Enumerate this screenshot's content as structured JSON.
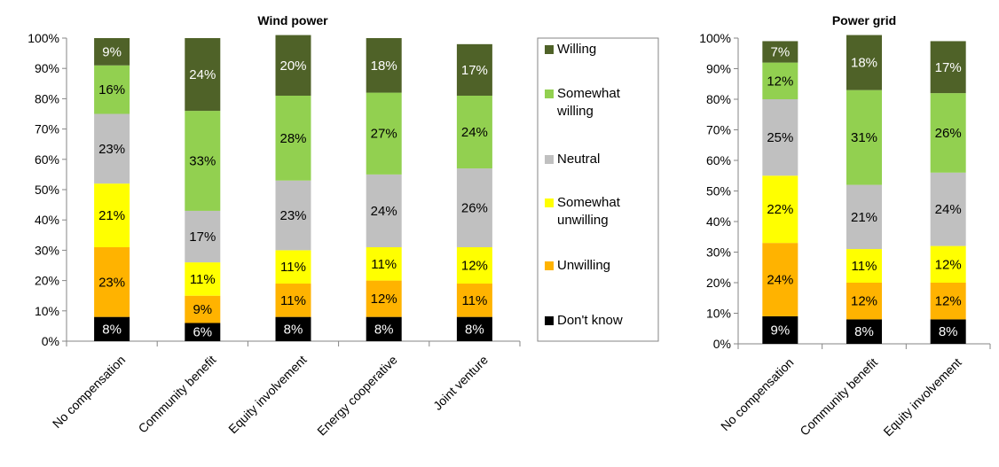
{
  "chart_data": [
    {
      "type": "bar",
      "stacked": true,
      "percent_stacked": true,
      "title": "Wind power",
      "categories": [
        "No compensation",
        "Community benefit",
        "Equity involvement",
        "Energy cooperative",
        "Joint venture"
      ],
      "ylim": [
        0,
        100
      ],
      "yticks": [
        "0%",
        "10%",
        "20%",
        "30%",
        "40%",
        "50%",
        "60%",
        "70%",
        "80%",
        "90%",
        "100%"
      ],
      "series": [
        {
          "name": "Don't know",
          "color": "#000000",
          "values": [
            8,
            6,
            8,
            8,
            8
          ],
          "labels": [
            "8%",
            "6%",
            "8%",
            "8%",
            "8%"
          ]
        },
        {
          "name": "Unwilling",
          "color": "#ffb300",
          "values": [
            23,
            9,
            11,
            12,
            11
          ],
          "labels": [
            "23%",
            "9%",
            "11%",
            "12%",
            "11%"
          ]
        },
        {
          "name": "Somewhat unwilling",
          "color": "#ffff00",
          "values": [
            21,
            11,
            11,
            11,
            12
          ],
          "labels": [
            "21%",
            "11%",
            "11%",
            "11%",
            "12%"
          ]
        },
        {
          "name": "Neutral",
          "color": "#c0c0c0",
          "values": [
            23,
            17,
            23,
            24,
            26
          ],
          "labels": [
            "23%",
            "17%",
            "23%",
            "24%",
            "26%"
          ]
        },
        {
          "name": "Somewhat willing",
          "color": "#92d050",
          "values": [
            16,
            33,
            28,
            27,
            24
          ],
          "labels": [
            "16%",
            "33%",
            "28%",
            "27%",
            "24%"
          ]
        },
        {
          "name": "Willing",
          "color": "#4f6228",
          "values": [
            9,
            24,
            20,
            18,
            17
          ],
          "labels": [
            "9%",
            "24%",
            "20%",
            "18%",
            "17%"
          ]
        }
      ]
    },
    {
      "type": "bar",
      "stacked": true,
      "percent_stacked": true,
      "title": "Power grid",
      "categories": [
        "No compensation",
        "Community benefit",
        "Equity involvement"
      ],
      "ylim": [
        0,
        100
      ],
      "yticks": [
        "0%",
        "10%",
        "20%",
        "30%",
        "40%",
        "50%",
        "60%",
        "70%",
        "80%",
        "90%",
        "100%"
      ],
      "series": [
        {
          "name": "Don't know",
          "color": "#000000",
          "values": [
            9,
            8,
            8
          ],
          "labels": [
            "9%",
            "8%",
            "8%"
          ]
        },
        {
          "name": "Unwilling",
          "color": "#ffb300",
          "values": [
            24,
            12,
            12
          ],
          "labels": [
            "24%",
            "12%",
            "12%"
          ]
        },
        {
          "name": "Somewhat unwilling",
          "color": "#ffff00",
          "values": [
            22,
            11,
            12
          ],
          "labels": [
            "22%",
            "11%",
            "12%"
          ]
        },
        {
          "name": "Neutral",
          "color": "#c0c0c0",
          "values": [
            25,
            21,
            24
          ],
          "labels": [
            "25%",
            "21%",
            "24%"
          ]
        },
        {
          "name": "Somewhat willing",
          "color": "#92d050",
          "values": [
            12,
            31,
            26
          ],
          "labels": [
            "12%",
            "31%",
            "26%"
          ]
        },
        {
          "name": "Willing",
          "color": "#4f6228",
          "values": [
            7,
            18,
            17
          ],
          "labels": [
            "7%",
            "18%",
            "17%"
          ]
        }
      ]
    }
  ],
  "legend": {
    "items": [
      {
        "lines": [
          "Willing"
        ],
        "color": "#4f6228"
      },
      {
        "lines": [
          "Somewhat",
          "willing"
        ],
        "color": "#92d050"
      },
      {
        "lines": [
          "Neutral"
        ],
        "color": "#c0c0c0"
      },
      {
        "lines": [
          "Somewhat",
          "unwilling"
        ],
        "color": "#ffff00"
      },
      {
        "lines": [
          "Unwilling"
        ],
        "color": "#ffb300"
      },
      {
        "lines": [
          "Don't know"
        ],
        "color": "#000000"
      }
    ]
  }
}
